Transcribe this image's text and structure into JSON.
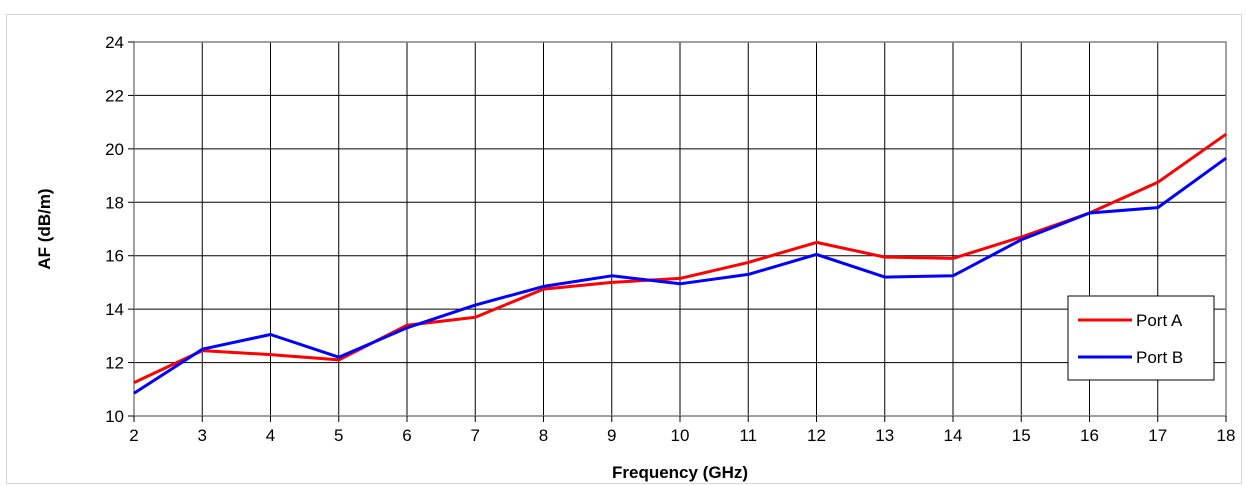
{
  "chart_data": {
    "type": "line",
    "title": "",
    "xlabel": "Frequency (GHz)",
    "ylabel": "AF (dB/m)",
    "xlim": [
      2,
      18
    ],
    "ylim": [
      10,
      24
    ],
    "x_ticks": [
      2,
      3,
      4,
      5,
      6,
      7,
      8,
      9,
      10,
      11,
      12,
      13,
      14,
      15,
      16,
      17,
      18
    ],
    "y_ticks": [
      10,
      12,
      14,
      16,
      18,
      20,
      22,
      24
    ],
    "grid": true,
    "legend_position": "bottom-right",
    "x": [
      2,
      3,
      4,
      5,
      6,
      7,
      8,
      9,
      10,
      11,
      12,
      13,
      14,
      15,
      16,
      17,
      18
    ],
    "series": [
      {
        "name": "Port A",
        "color": "#ff0000",
        "values": [
          11.25,
          12.45,
          12.3,
          12.1,
          13.4,
          13.7,
          14.75,
          15.0,
          15.15,
          15.75,
          16.5,
          15.95,
          15.9,
          16.7,
          17.6,
          18.75,
          20.55
        ]
      },
      {
        "name": "Port B",
        "color": "#0000ff",
        "values": [
          10.85,
          12.5,
          13.05,
          12.2,
          13.3,
          14.15,
          14.85,
          15.25,
          14.95,
          15.3,
          16.05,
          15.2,
          15.25,
          16.6,
          17.6,
          17.8,
          19.65
        ]
      }
    ]
  }
}
